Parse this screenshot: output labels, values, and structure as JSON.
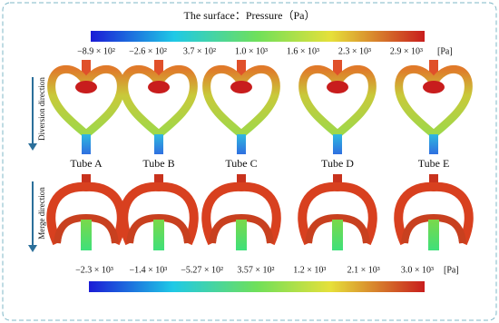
{
  "title": "The surface：Pressure（Pa）",
  "top_colorbar": {
    "ticks": [
      "−8.9 × 10²",
      "−2.6 × 10²",
      "3.7 × 10²",
      "1.0 × 10³",
      "1.6 × 10³",
      "2.3 × 10³",
      "2.9 × 10³"
    ],
    "unit": "[Pa]"
  },
  "bottom_colorbar": {
    "ticks": [
      "−2.3 × 10³",
      "−1.4 × 10³",
      "−5.27 × 10²",
      "3.57 × 10²",
      "1.2 × 10³",
      "2.1 × 10³",
      "3.0 × 10³"
    ],
    "unit": "[Pa]"
  },
  "rows": [
    {
      "label": "Diversion direction"
    },
    {
      "label": "Merge direction"
    }
  ],
  "tubes": [
    "Tube A",
    "Tube B",
    "Tube C",
    "Tube D",
    "Tube E"
  ]
}
